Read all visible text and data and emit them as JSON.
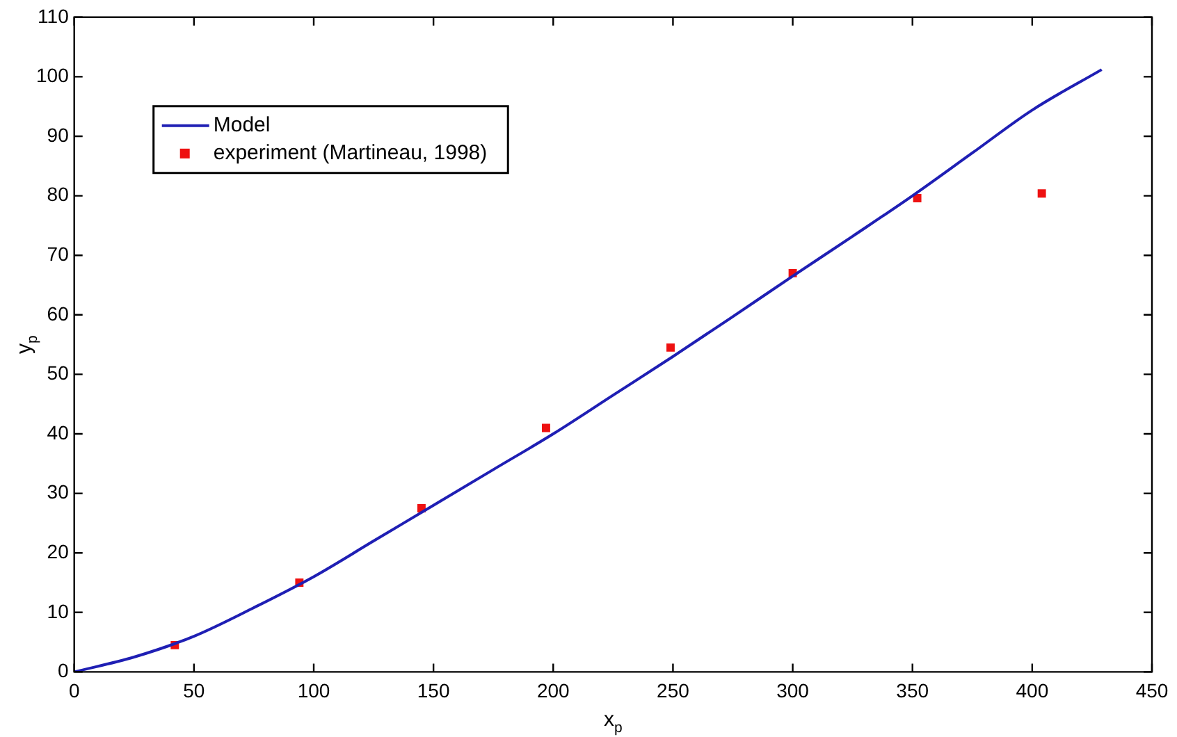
{
  "chart_data": {
    "type": "line",
    "xlabel": "x$_{p}$",
    "ylabel": "y$_{p}$",
    "xlim": [
      0,
      450
    ],
    "xticks": [
      0,
      50,
      100,
      150,
      200,
      250,
      300,
      350,
      400,
      450
    ],
    "ylim": [
      0,
      110
    ],
    "yticks": [
      0,
      10,
      20,
      30,
      40,
      50,
      60,
      70,
      80,
      90,
      100,
      110
    ],
    "grid": false,
    "legend": "top left",
    "series": [
      {
        "name": "Model",
        "color": "#1f1fb4",
        "marker": "none",
        "line_style": "solid",
        "x": [
          0,
          25,
          50,
          75,
          100,
          125,
          150,
          175,
          200,
          225,
          250,
          275,
          300,
          325,
          350,
          375,
          400,
          429
        ],
        "values": [
          0,
          2.5,
          6,
          10.8,
          16,
          22,
          28,
          34,
          40,
          46.5,
          53,
          59.7,
          66.5,
          73.2,
          80,
          87.2,
          94.4,
          101.2
        ]
      },
      {
        "name": "experiment (Martineau, 1998)",
        "type": "scatter",
        "color": "#ee1111",
        "marker": "square",
        "x": [
          42,
          94,
          145,
          197,
          249,
          300,
          352,
          404
        ],
        "values": [
          4.5,
          15,
          27.5,
          41,
          54.5,
          67,
          79.6,
          80.4
        ]
      }
    ]
  }
}
